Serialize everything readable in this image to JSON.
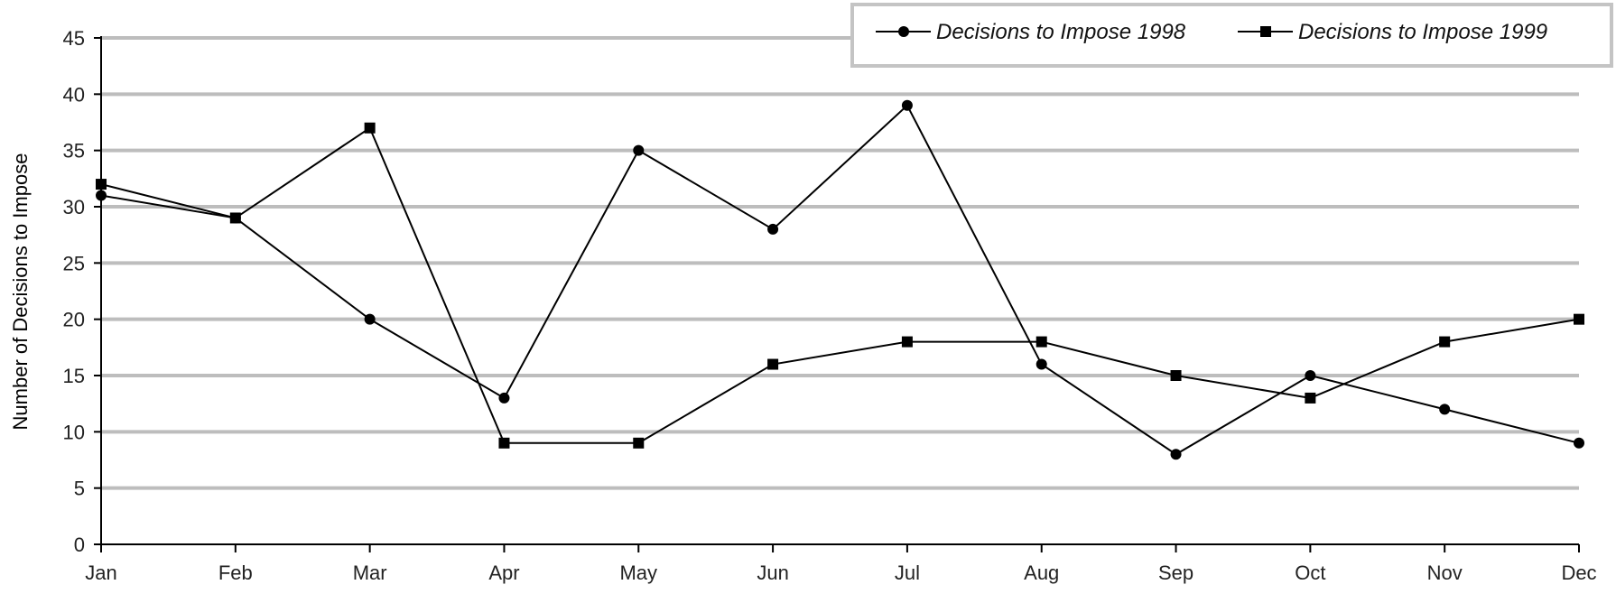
{
  "chart_data": {
    "type": "line",
    "title": "",
    "xlabel": "",
    "ylabel": "Number of Decisions to Impose",
    "categories": [
      "Jan",
      "Feb",
      "Mar",
      "Apr",
      "May",
      "Jun",
      "Jul",
      "Aug",
      "Sep",
      "Oct",
      "Nov",
      "Dec"
    ],
    "ylim": [
      0,
      45
    ],
    "yticks": [
      0,
      5,
      10,
      15,
      20,
      25,
      30,
      35,
      40,
      45
    ],
    "grid": true,
    "legend_position": "top-right",
    "series": [
      {
        "name": "Decisions to Impose 1998",
        "marker": "circle",
        "color": "#000000",
        "values": [
          31,
          29,
          20,
          13,
          35,
          28,
          39,
          16,
          8,
          15,
          12,
          9
        ]
      },
      {
        "name": "Decisions to Impose 1999",
        "marker": "square",
        "color": "#000000",
        "values": [
          32,
          29,
          37,
          9,
          9,
          16,
          18,
          18,
          15,
          13,
          18,
          20
        ]
      }
    ]
  }
}
